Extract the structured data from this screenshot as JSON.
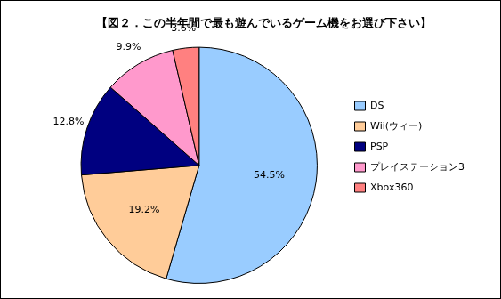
{
  "chart_data": {
    "type": "pie",
    "title": "【図２．この半年間で最も遊んでいるゲーム機をお選び下さい】",
    "categories": [
      "DS",
      "Wii(ウィー)",
      "PSP",
      "プレイステーション3",
      "Xbox360"
    ],
    "values": [
      54.5,
      19.2,
      12.8,
      9.9,
      3.6
    ],
    "value_labels": [
      "54.5%",
      "19.2%",
      "12.8%",
      "9.9%",
      "3.6%"
    ],
    "colors": [
      "#99ccff",
      "#ffcc99",
      "#000080",
      "#ff99cc",
      "#ff8080"
    ],
    "legend": "right",
    "data_labels": true
  }
}
